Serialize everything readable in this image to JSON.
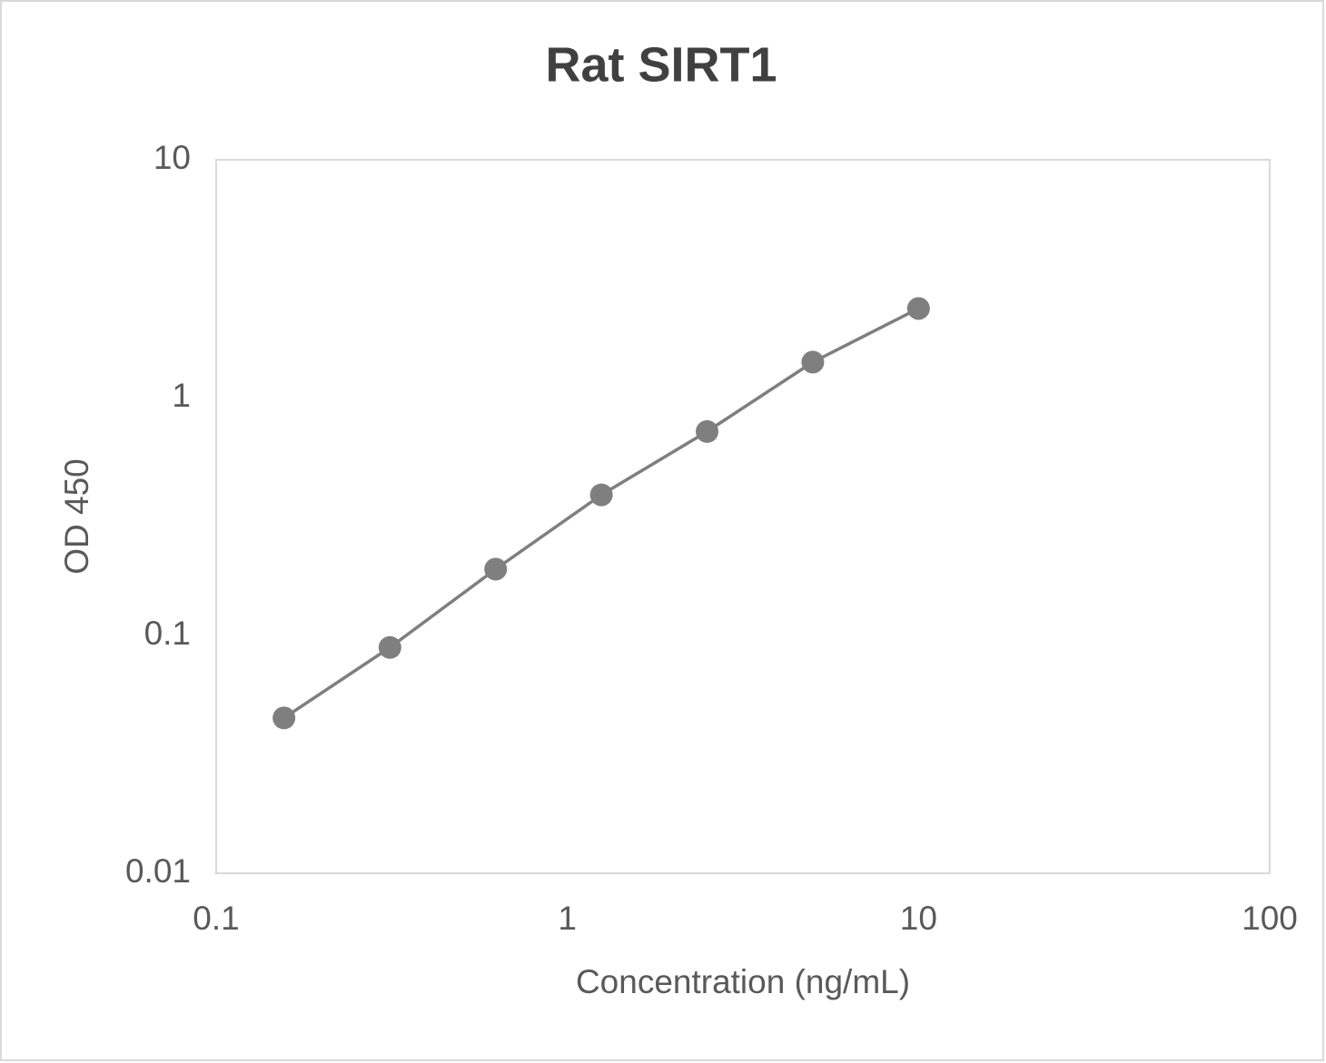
{
  "chart_data": {
    "type": "line",
    "title": "Rat SIRT1",
    "x_label": "Concentration (ng/mL)",
    "y_label": "OD 450",
    "x": [
      0.156,
      0.3125,
      0.625,
      1.25,
      2.5,
      5,
      10
    ],
    "series": [
      {
        "color": "#7f7f7f",
        "values": [
          0.045,
          0.089,
          0.19,
          0.39,
          0.72,
          1.41,
          2.37
        ]
      }
    ],
    "x_log": true,
    "y_log": true,
    "xlim": [
      0.1,
      100
    ],
    "xticks": [
      0.1,
      1,
      10,
      100
    ],
    "ylim": [
      0.01,
      10
    ],
    "yticks": [
      0.01,
      0.1,
      1,
      10
    ],
    "markers": true
  }
}
